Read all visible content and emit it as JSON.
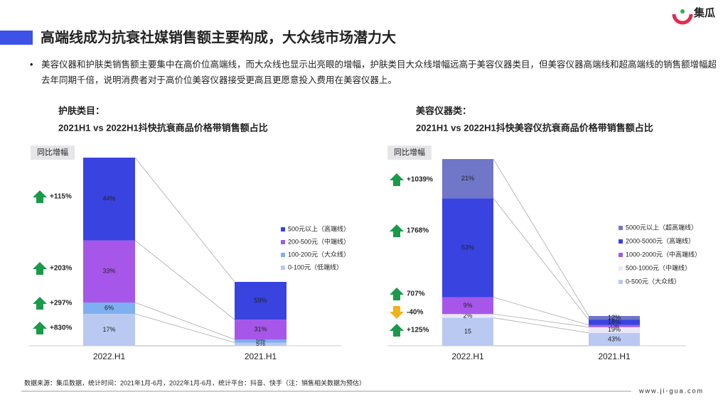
{
  "logo": "集瓜",
  "header": {
    "title": "高端线成为抗衰社媒销售额主要构成，大众线市场潜力大"
  },
  "bullet": "美容仪器和护肤类销售额主要集中在高价位高端线，而大众线也显示出亮眼的增幅，护肤类目大众线增幅远高于美容仪器类目，但美容仪器高端线和超高端线的销售额增幅超去年同期千倍，说明消费者对于高价位美容仪器接受更高且更愿意投入费用在美容仪器上。",
  "chart_data": [
    {
      "type": "stacked_bar",
      "title": "护肤类目：",
      "subtitle": "2021H1 vs 2022H1抖快抗衰商品价格带销售额占比",
      "growth_title": "同比增幅",
      "categories": [
        "2022.H1",
        "2021.H1"
      ],
      "series": [
        {
          "name": "0-100元（低端线）",
          "color": "#b9c9f1",
          "label_color": "#ffffff",
          "values": [
            17,
            5
          ],
          "value_labels": [
            "17%",
            "5%"
          ],
          "growth": "+830%"
        },
        {
          "name": "100-200元（大众线）",
          "color": "#7eaff0",
          "label_color": "#ffffff",
          "values": [
            6,
            5
          ],
          "value_labels": [
            "6%",
            "5%"
          ],
          "growth": "+297%"
        },
        {
          "name": "200-500元（中端线）",
          "color": "#a657ea",
          "label_color": "#ffffff",
          "values": [
            33,
            31
          ],
          "value_labels": [
            "33%",
            "31%"
          ],
          "growth": "+203%"
        },
        {
          "name": "500元以上（高端线）",
          "color": "#3843e0",
          "label_color": "#ffffff",
          "values": [
            44,
            59
          ],
          "value_labels": [
            "44%",
            "59%"
          ],
          "growth": "+115%"
        }
      ]
    },
    {
      "type": "stacked_bar",
      "title": "美容仪器类：",
      "subtitle": "2021H1 vs 2022H1抖快美容仪抗衰商品价格带销售额占比",
      "growth_title": "同比增幅",
      "categories": [
        "2022.H1",
        "2021.H1"
      ],
      "series": [
        {
          "name": "0-500元（大众线）",
          "color": "#b9c9f1",
          "label_color": "#ffffff",
          "values": [
            15,
            43
          ],
          "value_labels": [
            "15",
            "43%"
          ],
          "growth": "+125%"
        },
        {
          "name": "500-1000元（中端线）",
          "color": "#e9e7f8",
          "label_color": "#555555",
          "values": [
            2,
            19
          ],
          "value_labels": [
            "2%",
            "19%"
          ],
          "growth": "-40%"
        },
        {
          "name": "1000-2000元（中高端线）",
          "color": "#a657ea",
          "label_color": "#ffffff",
          "values": [
            9,
            7
          ],
          "value_labels": [
            "9%",
            "7%"
          ],
          "growth": "707%"
        },
        {
          "name": "2000-5000元（高端线）",
          "color": "#3843e0",
          "label_color": "#ffffff",
          "values": [
            53,
            18
          ],
          "value_labels": [
            "53%",
            "18%"
          ],
          "growth": "1768%"
        },
        {
          "name": "5000元以上（超高端线）",
          "color": "#7076c8",
          "label_color": "#ffffff",
          "values": [
            21,
            12
          ],
          "value_labels": [
            "21%",
            "12%"
          ],
          "growth": "+1039%"
        }
      ]
    }
  ],
  "footer": {
    "source": "数据来源：集瓜数据，统计时间：2021年1月-6月，2022年1月-6月，统计平台：抖音、快手（注：销售相关数据为预估）",
    "url": "www.ji-gua.com"
  }
}
